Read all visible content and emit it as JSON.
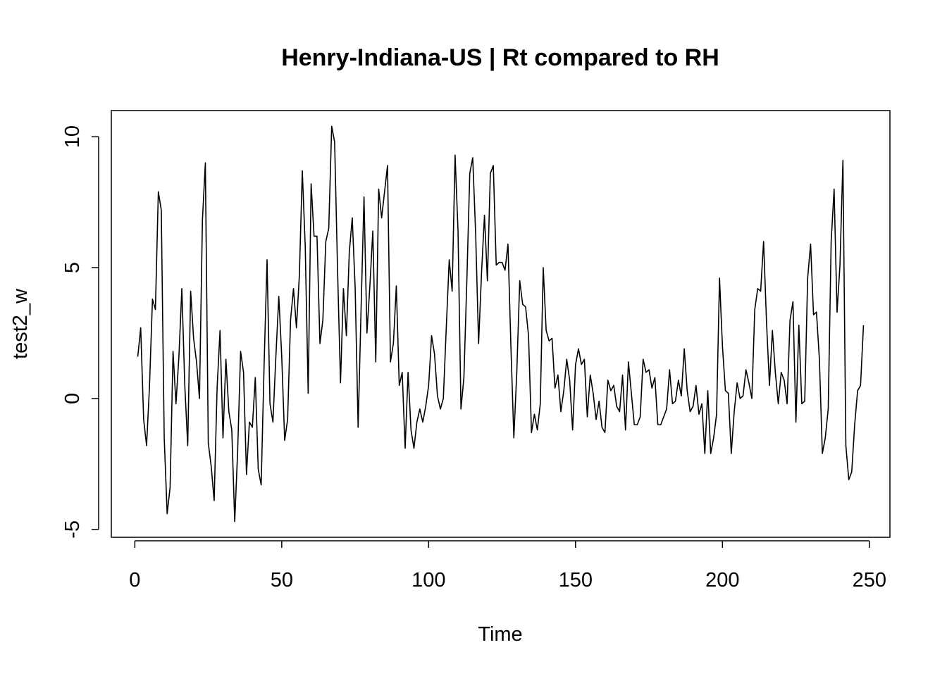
{
  "chart_data": {
    "type": "line",
    "title": "Henry-Indiana-US | Rt compared to RH",
    "xlabel": "Time",
    "ylabel": "test2_w",
    "xlim": [
      -8,
      257
    ],
    "ylim": [
      -5.3,
      11.0
    ],
    "xticks": [
      0,
      50,
      100,
      150,
      200,
      250
    ],
    "yticks": [
      -5,
      0,
      5,
      10
    ],
    "x_start": 1,
    "series": [
      {
        "values": [
          1.6,
          2.7,
          -0.8,
          -1.8,
          0.5,
          3.8,
          3.4,
          7.9,
          7.2,
          -1.5,
          -4.4,
          -3.4,
          1.8,
          -0.2,
          1.6,
          4.2,
          0.5,
          -1.8,
          4.1,
          2.3,
          1.4,
          0.0,
          6.8,
          9.0,
          -1.7,
          -2.6,
          -3.9,
          0.4,
          2.6,
          -1.5,
          1.5,
          -0.5,
          -1.2,
          -4.7,
          -2.0,
          1.8,
          1.0,
          -2.9,
          -0.9,
          -1.1,
          0.8,
          -2.7,
          -3.3,
          1.3,
          5.3,
          -0.2,
          -0.9,
          1.6,
          3.9,
          1.6,
          -1.6,
          -0.8,
          3.0,
          4.2,
          2.7,
          4.7,
          8.7,
          5.8,
          0.2,
          8.2,
          6.2,
          6.2,
          2.1,
          3.0,
          6.0,
          6.5,
          10.4,
          9.8,
          4.9,
          0.6,
          4.2,
          2.4,
          5.6,
          6.9,
          4.2,
          -1.1,
          3.4,
          7.7,
          2.5,
          4.3,
          6.4,
          1.4,
          8.0,
          6.9,
          7.9,
          8.9,
          1.4,
          2.1,
          4.3,
          0.5,
          1.0,
          -1.9,
          1.0,
          -1.2,
          -1.9,
          -0.9,
          -0.4,
          -0.9,
          -0.3,
          0.5,
          2.4,
          1.7,
          0.1,
          -0.4,
          0.0,
          2.7,
          5.3,
          4.1,
          9.3,
          6.4,
          -0.4,
          0.8,
          4.5,
          8.6,
          9.2,
          6.3,
          2.1,
          4.8,
          7.0,
          4.5,
          8.6,
          8.9,
          5.1,
          5.2,
          5.2,
          4.9,
          5.9,
          2.0,
          -1.5,
          1.0,
          4.5,
          3.6,
          3.5,
          2.4,
          -1.3,
          -0.6,
          -1.2,
          -0.2,
          5.0,
          2.6,
          2.2,
          2.3,
          0.4,
          0.9,
          -0.5,
          0.3,
          1.5,
          0.7,
          -1.2,
          1.3,
          1.9,
          1.3,
          1.5,
          -0.7,
          0.9,
          0.2,
          -0.8,
          -0.1,
          -1.1,
          -1.3,
          0.7,
          0.3,
          0.5,
          -0.3,
          -0.5,
          0.9,
          -1.2,
          1.4,
          0.2,
          -1.0,
          -1.0,
          -0.7,
          1.5,
          1.0,
          1.1,
          0.4,
          0.8,
          -1.0,
          -1.0,
          -0.7,
          -0.4,
          1.1,
          -0.2,
          -0.1,
          0.7,
          0.1,
          1.9,
          0.3,
          -0.5,
          -0.3,
          0.5,
          -0.6,
          -0.2,
          -2.1,
          0.3,
          -2.1,
          -1.5,
          -0.6,
          4.6,
          2.0,
          0.3,
          0.2,
          -2.1,
          -0.5,
          0.6,
          0.0,
          0.1,
          1.1,
          0.6,
          0.0,
          3.4,
          4.2,
          4.1,
          6.0,
          2.9,
          0.5,
          2.6,
          1.0,
          -0.2,
          1.0,
          0.7,
          -0.2,
          3.0,
          3.7,
          -0.9,
          2.8,
          -0.2,
          -0.1,
          4.6,
          5.9,
          3.2,
          3.3,
          1.5,
          -2.1,
          -1.5,
          -0.4,
          6.0,
          8.0,
          3.3,
          5.1,
          9.1,
          -1.8,
          -3.1,
          -2.8,
          -1.0,
          0.3,
          0.5,
          2.8
        ]
      }
    ],
    "grid": false,
    "line_color": "#000000"
  }
}
